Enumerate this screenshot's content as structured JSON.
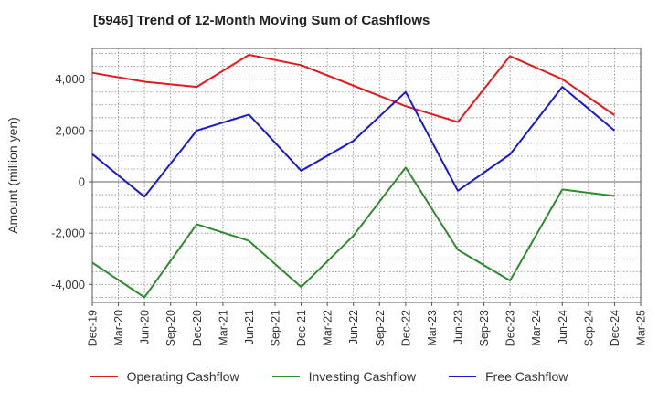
{
  "chart_data": {
    "type": "line",
    "title": "[5946]  Trend of 12-Month Moving Sum of Cashflows",
    "ylabel": "Amount (million yen)",
    "xlabel": "",
    "categories": [
      "Dec-19",
      "Mar-20",
      "Jun-20",
      "Sep-20",
      "Dec-20",
      "Mar-21",
      "Jun-21",
      "Sep-21",
      "Dec-21",
      "Mar-22",
      "Jun-22",
      "Sep-22",
      "Dec-22",
      "Mar-23",
      "Jun-23",
      "Sep-23",
      "Dec-23",
      "Mar-24",
      "Jun-24",
      "Sep-24",
      "Dec-24",
      "Mar-25"
    ],
    "ylim": [
      -4700,
      5200
    ],
    "yticks": [
      -4000,
      -2000,
      0,
      2000,
      4000
    ],
    "ytick_labels": [
      "-4,000",
      "-2,000",
      "0",
      "2,000",
      "4,000"
    ],
    "grid": true,
    "legend_position": "bottom",
    "series": [
      {
        "name": "Operating Cashflow",
        "color": "#e31a1c",
        "values": [
          4250,
          null,
          3900,
          null,
          3700,
          null,
          4950,
          null,
          4550,
          null,
          null,
          null,
          2950,
          null,
          2330,
          null,
          4900,
          null,
          4000,
          null,
          2600,
          null
        ]
      },
      {
        "name": "Investing Cashflow",
        "color": "#2e8b2e",
        "values": [
          -3150,
          null,
          -4500,
          null,
          -1650,
          null,
          -2300,
          null,
          -4100,
          null,
          -2100,
          null,
          560,
          null,
          -2650,
          null,
          -3850,
          null,
          -300,
          null,
          -550,
          null
        ]
      },
      {
        "name": "Free Cashflow",
        "color": "#1a1acd",
        "values": [
          1080,
          null,
          -580,
          null,
          2000,
          null,
          2620,
          null,
          430,
          null,
          1600,
          null,
          3500,
          null,
          -350,
          null,
          1070,
          null,
          3700,
          null,
          2000,
          null
        ]
      }
    ]
  }
}
